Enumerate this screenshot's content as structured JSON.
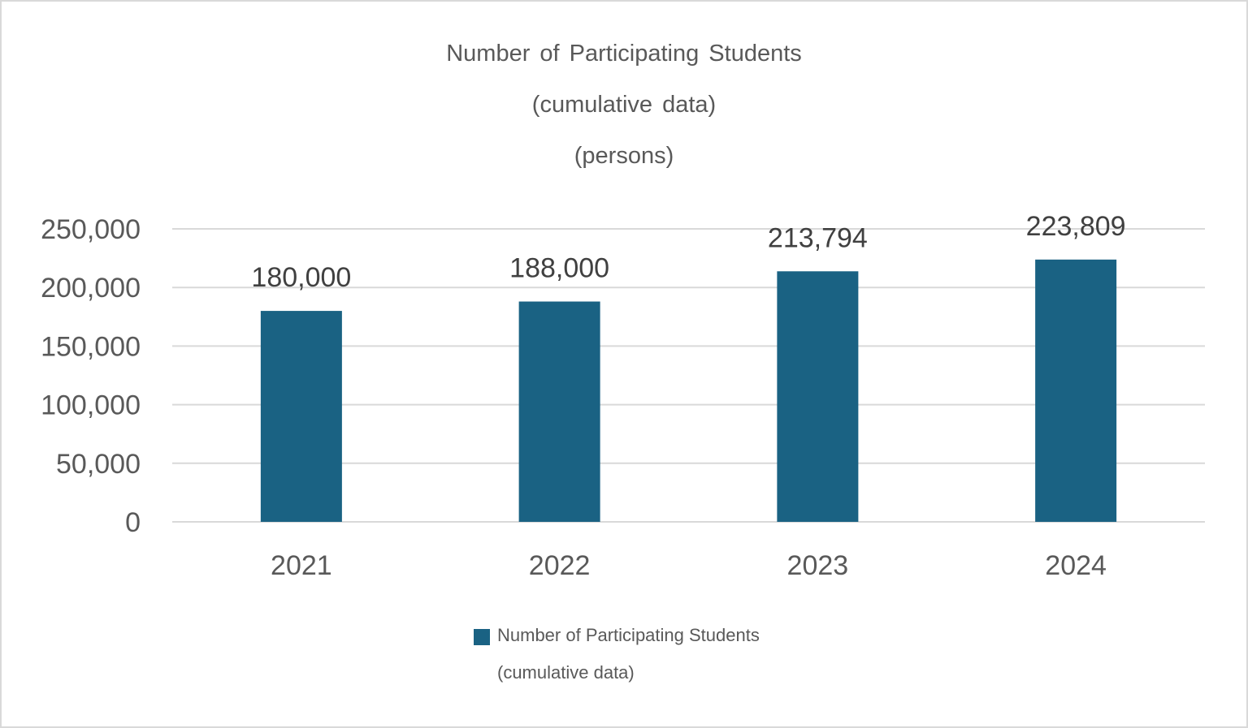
{
  "colors": {
    "bar": "#1a6283",
    "grid": "#d9d9d9",
    "text": "#595959"
  },
  "chart_data": {
    "type": "bar",
    "title": [
      "Number of Participating Students",
      "(cumulative data)",
      "(persons)"
    ],
    "categories": [
      "2021",
      "2022",
      "2023",
      "2024"
    ],
    "series": [
      {
        "name": [
          "Number of Participating Students",
          "(cumulative data)"
        ],
        "values": [
          180000,
          188000,
          213794,
          223809
        ],
        "labels": [
          "180,000",
          "188,000",
          "213,794",
          "223,809"
        ]
      }
    ],
    "ylim": [
      0,
      250000
    ],
    "yticks": [
      0,
      50000,
      100000,
      150000,
      200000,
      250000
    ],
    "ytick_labels": [
      "0",
      "50,000",
      "100,000",
      "150,000",
      "200,000",
      "250,000"
    ],
    "grid": true,
    "legend": "bottom"
  }
}
